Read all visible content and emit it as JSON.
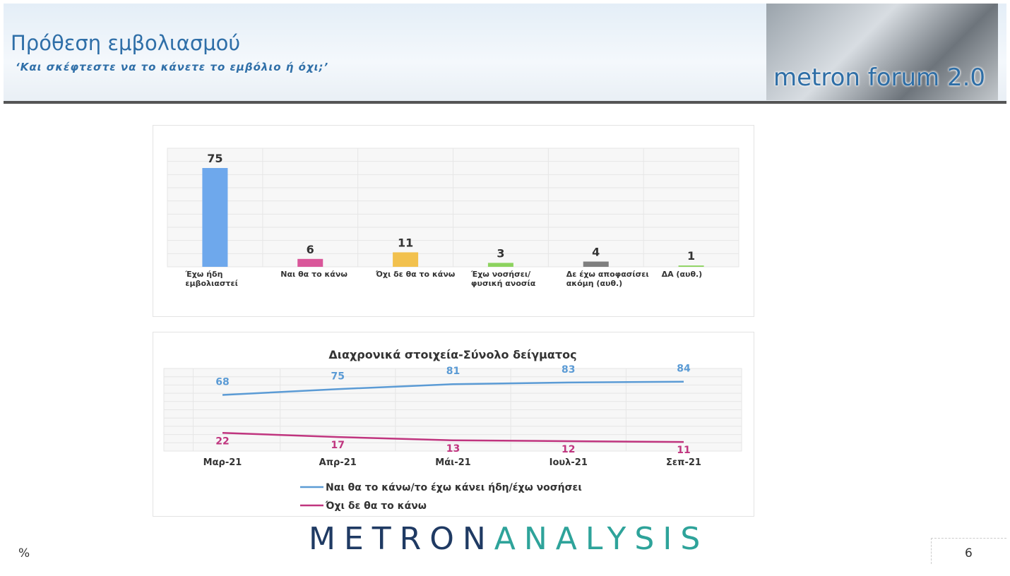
{
  "header": {
    "title": "Πρόθεση εμβολιασμού",
    "subtitle": "‘Και σκέφτεστε να το κάνετε το εμβόλιο ή όχι;’",
    "logo": "metron forum 2.0"
  },
  "chart_data": [
    {
      "type": "bar",
      "categories": [
        "Έχω ήδη εμβολιαστεί",
        "Ναι θα το κάνω",
        "Όχι δε θα το κάνω",
        "Έχω νοσήσει/ φυσική ανοσία",
        "Δε έχω αποφασίσει ακόμη (αυθ.)",
        "ΔΑ (αυθ.)"
      ],
      "values": [
        75,
        6,
        11,
        3,
        4,
        1
      ],
      "colors": [
        "#6ea8ec",
        "#d9579a",
        "#f2c14e",
        "#8dd35f",
        "#7f7f7f",
        "#8dd35f"
      ],
      "ylim": [
        0,
        90
      ]
    },
    {
      "type": "line",
      "title": "Διαχρονικά στοιχεία-Σύνολο δείγματος",
      "categories": [
        "Μαρ-21",
        "Απρ-21",
        "Μάι-21",
        "Ιουλ-21",
        "Σεπ-21"
      ],
      "series": [
        {
          "name": "Ναι θα το κάνω/το έχω κάνει ήδη/έχω νοσήσει",
          "color": "#5b9bd5",
          "values": [
            68,
            75,
            81,
            83,
            84
          ]
        },
        {
          "name": "Όχι δε θα το κάνω",
          "color": "#c0357f",
          "values": [
            22,
            17,
            13,
            12,
            11
          ]
        }
      ],
      "ylim": [
        0,
        100
      ]
    }
  ],
  "footer": {
    "brand_left": "METRON",
    "brand_right": "ANALYSIS",
    "unit": "%",
    "page": "6"
  }
}
